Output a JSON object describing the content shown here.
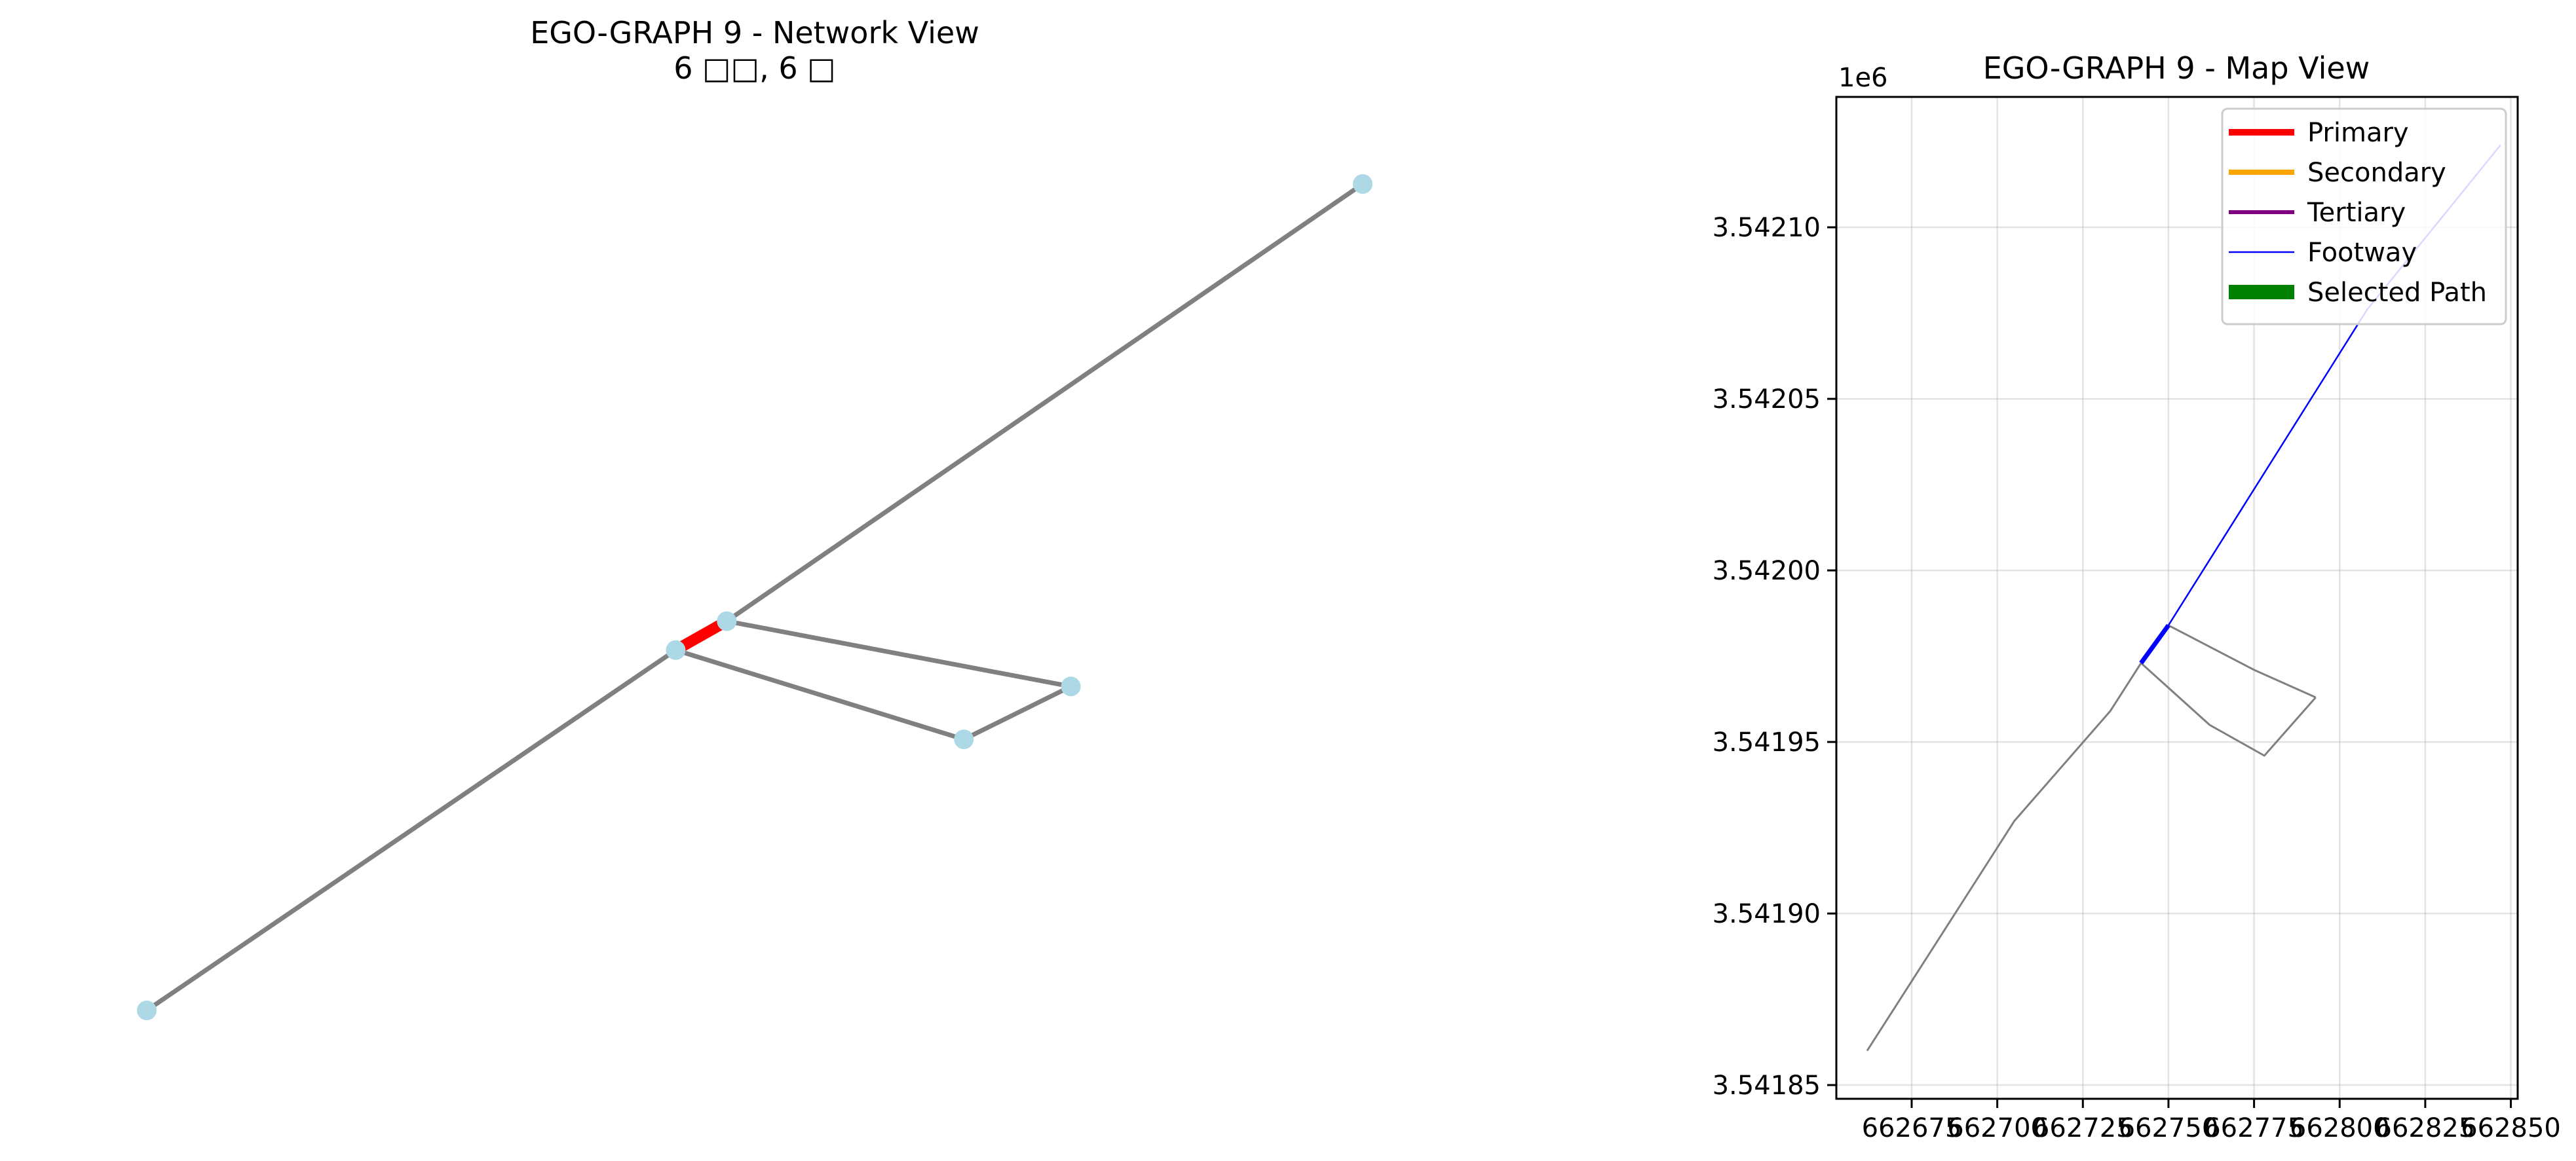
{
  "chart_data": [
    {
      "type": "network",
      "title": "EGO-GRAPH 9 - Network View",
      "subtitle": "6 □□, 6 □",
      "node_color": "#add8e6",
      "default_edge_color": "#808080",
      "highlight_edge_color": "#ff0000",
      "nodes": [
        {
          "id": "n1",
          "x": 0.0,
          "y": 0.0
        },
        {
          "id": "n2",
          "x": 0.435,
          "y": 0.436
        },
        {
          "id": "n3",
          "x": 0.477,
          "y": 0.471
        },
        {
          "id": "n4",
          "x": 1.0,
          "y": 1.0
        },
        {
          "id": "n5",
          "x": 0.672,
          "y": 0.328
        },
        {
          "id": "n6",
          "x": 0.76,
          "y": 0.392
        }
      ],
      "edges": [
        {
          "source": "n1",
          "target": "n2",
          "highlight": false
        },
        {
          "source": "n2",
          "target": "n3",
          "highlight": true
        },
        {
          "source": "n3",
          "target": "n4",
          "highlight": false
        },
        {
          "source": "n3",
          "target": "n6",
          "highlight": false
        },
        {
          "source": "n2",
          "target": "n5",
          "highlight": false
        },
        {
          "source": "n5",
          "target": "n6",
          "highlight": false
        }
      ]
    },
    {
      "type": "line",
      "title": "EGO-GRAPH 9 - Map View",
      "x_offset_label": "",
      "y_offset_label": "1e6",
      "xlim": [
        662653,
        662852
      ],
      "ylim": [
        3541846,
        3542138
      ],
      "xticks": [
        662675,
        662700,
        662725,
        662750,
        662775,
        662800,
        662825,
        662850
      ],
      "xtick_labels": [
        "662675",
        "662700",
        "662725",
        "662750",
        "662775",
        "662800",
        "662825",
        "662850"
      ],
      "yticks": [
        3541850,
        3541900,
        3541950,
        3542000,
        3542050,
        3542100
      ],
      "ytick_labels": [
        "3.54185",
        "3.54190",
        "3.54195",
        "3.54200",
        "3.54205",
        "3.54210"
      ],
      "grid": true,
      "legend_placement": "upper right",
      "legend": [
        {
          "label": "Primary",
          "color": "#ff0000",
          "width": 10
        },
        {
          "label": "Secondary",
          "color": "#ffa500",
          "width": 8
        },
        {
          "label": "Tertiary",
          "color": "#800080",
          "width": 6
        },
        {
          "label": "Footway",
          "color": "#0000ff",
          "width": 2.5
        },
        {
          "label": "Selected Path",
          "color": "#008000",
          "width": 22
        }
      ],
      "series": [
        {
          "name": "",
          "color": "#808080",
          "width": 3,
          "points": [
            [
              662662,
              3541860
            ],
            [
              662705,
              3541927
            ],
            [
              662733,
              3541959
            ],
            [
              662742,
              3541973
            ]
          ]
        },
        {
          "name": "",
          "color": "#808080",
          "width": 3,
          "points": [
            [
              662742,
              3541973
            ],
            [
              662762,
              3541955
            ],
            [
              662778,
              3541946
            ],
            [
              662793,
              3541963
            ]
          ]
        },
        {
          "name": "",
          "color": "#808080",
          "width": 3,
          "points": [
            [
              662750,
              3541984
            ],
            [
              662775,
              3541971
            ],
            [
              662793,
              3541963
            ]
          ]
        },
        {
          "name": "",
          "color": "#0000ff",
          "width": 2.5,
          "points": [
            [
              662750,
              3541984
            ],
            [
              662808,
              3542076
            ],
            [
              662847,
              3542124
            ]
          ]
        },
        {
          "name": "",
          "color": "#0000ff",
          "width": 7,
          "points": [
            [
              662742,
              3541973
            ],
            [
              662750,
              3541984
            ]
          ]
        }
      ]
    }
  ]
}
